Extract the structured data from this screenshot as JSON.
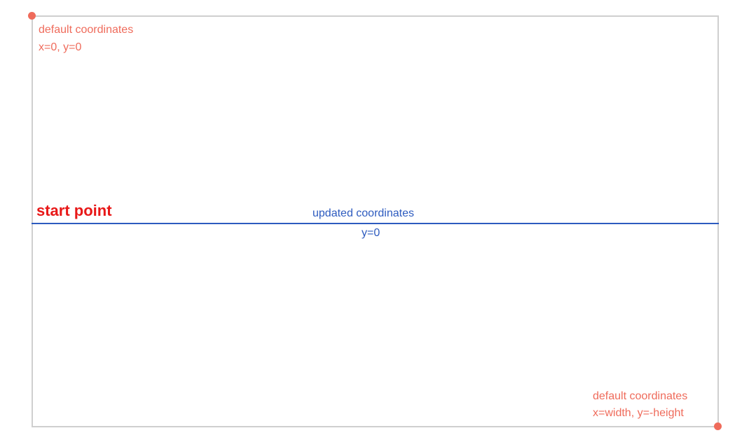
{
  "colors": {
    "red_annotation": "#ef6b5b",
    "start_point": "#e81818",
    "blue_line": "#2d5bbf",
    "blue_text": "#2d5bbf",
    "frame_border": "#cfcfcf"
  },
  "top_left": {
    "line1": "default coordinates",
    "line2": "x=0, y=0"
  },
  "bottom_right": {
    "line1": "default coordinates",
    "line2": "x=width, y=-height"
  },
  "start_point": {
    "label": "start point"
  },
  "updated": {
    "line1": "updated coordinates",
    "line2": "y=0"
  }
}
